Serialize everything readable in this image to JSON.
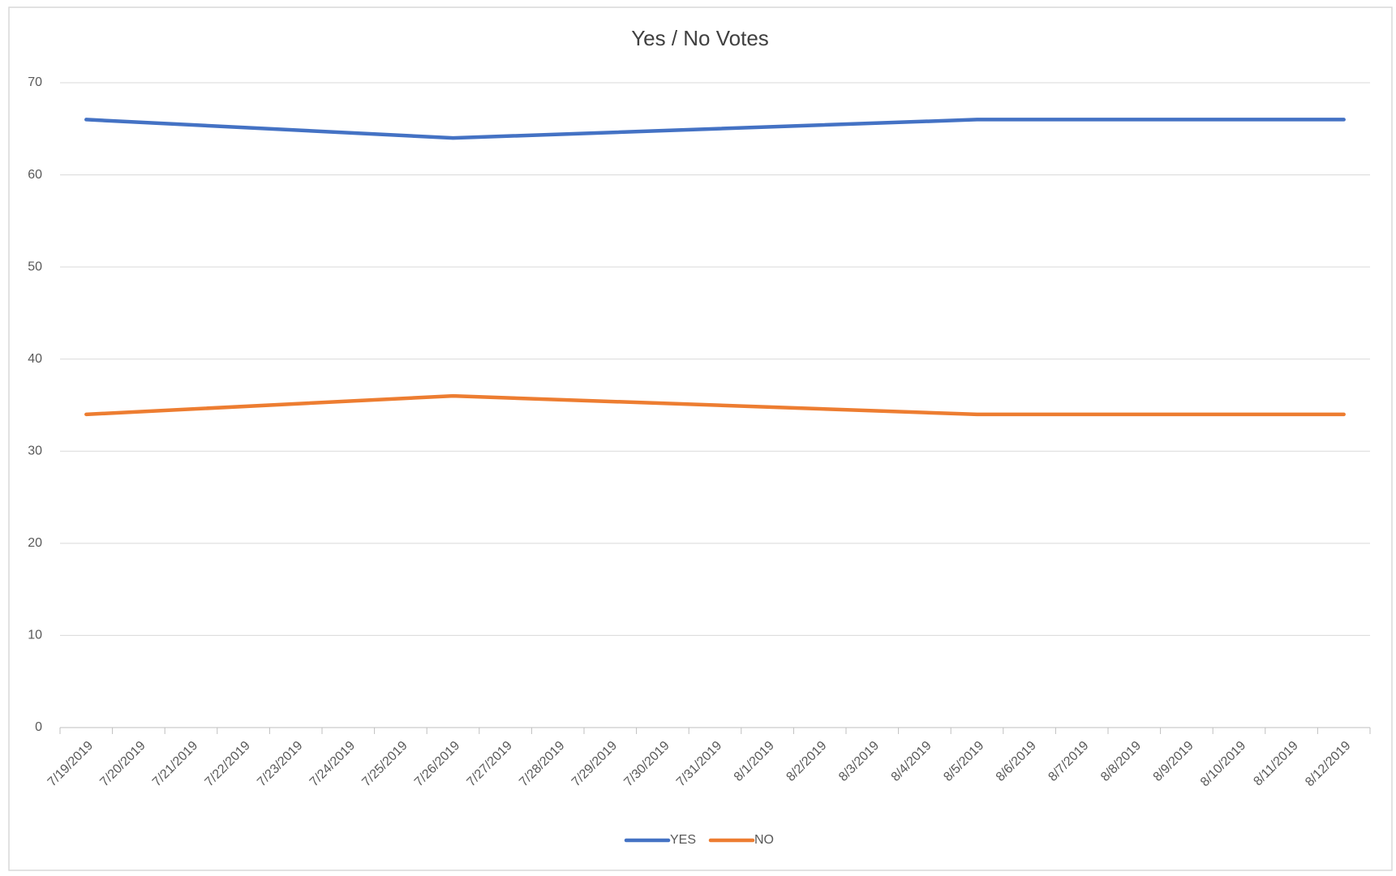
{
  "chart_data": {
    "type": "line",
    "title": "Yes / No Votes",
    "xticks": [
      "7/19/2019",
      "7/20/2019",
      "7/21/2019",
      "7/22/2019",
      "7/23/2019",
      "7/24/2019",
      "7/25/2019",
      "7/26/2019",
      "7/27/2019",
      "7/28/2019",
      "7/29/2019",
      "7/30/2019",
      "7/31/2019",
      "8/1/2019",
      "8/2/2019",
      "8/3/2019",
      "8/4/2019",
      "8/5/2019",
      "8/6/2019",
      "8/7/2019",
      "8/8/2019",
      "8/9/2019",
      "8/10/2019",
      "8/11/2019",
      "8/12/2019"
    ],
    "x": [
      "7/19/2019",
      "7/26/2019",
      "8/5/2019",
      "8/12/2019"
    ],
    "series": [
      {
        "name": "YES",
        "color": "#4472c4",
        "values": [
          66,
          64,
          66,
          66
        ]
      },
      {
        "name": "NO",
        "color": "#ed7d31",
        "values": [
          34,
          36,
          34,
          34
        ]
      }
    ],
    "ylim": [
      0,
      70
    ],
    "yticks": [
      0,
      10,
      20,
      30,
      40,
      50,
      60,
      70
    ],
    "grid": true,
    "legend": "bottom"
  }
}
